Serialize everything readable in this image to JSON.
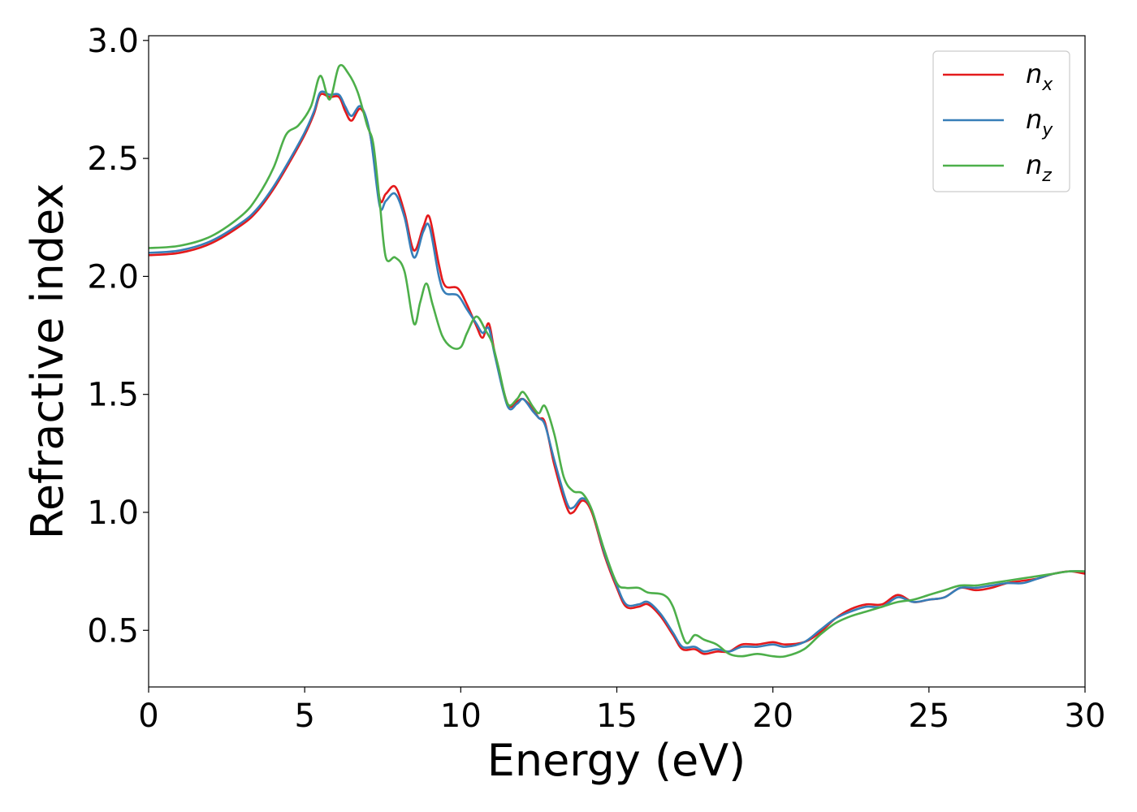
{
  "chart_data": {
    "type": "line",
    "xlabel": "Energy (eV)",
    "ylabel": "Refractive index",
    "xlim": [
      0,
      30
    ],
    "ylim": [
      0.26,
      3.02
    ],
    "xticks": [
      0,
      5,
      10,
      15,
      20,
      25,
      30
    ],
    "xtick_labels": [
      "0",
      "5",
      "10",
      "15",
      "20",
      "25",
      "30"
    ],
    "yticks": [
      0.5,
      1.0,
      1.5,
      2.0,
      2.5,
      3.0
    ],
    "ytick_labels": [
      "0.5",
      "1.0",
      "1.5",
      "2.0",
      "2.5",
      "3.0"
    ],
    "grid": false,
    "legend_position": "top-right",
    "series": [
      {
        "name": "n",
        "sub": "x",
        "color": "#e41a1c",
        "points": [
          [
            0,
            2.09
          ],
          [
            1,
            2.1
          ],
          [
            2,
            2.14
          ],
          [
            3,
            2.22
          ],
          [
            3.5,
            2.28
          ],
          [
            4,
            2.37
          ],
          [
            4.5,
            2.48
          ],
          [
            5,
            2.6
          ],
          [
            5.3,
            2.69
          ],
          [
            5.5,
            2.77
          ],
          [
            5.8,
            2.76
          ],
          [
            6.1,
            2.76
          ],
          [
            6.3,
            2.7
          ],
          [
            6.5,
            2.66
          ],
          [
            6.8,
            2.71
          ],
          [
            7.1,
            2.6
          ],
          [
            7.4,
            2.33
          ],
          [
            7.6,
            2.35
          ],
          [
            7.9,
            2.38
          ],
          [
            8.2,
            2.27
          ],
          [
            8.5,
            2.11
          ],
          [
            8.8,
            2.21
          ],
          [
            9.0,
            2.25
          ],
          [
            9.3,
            2.05
          ],
          [
            9.5,
            1.96
          ],
          [
            9.9,
            1.95
          ],
          [
            10.2,
            1.88
          ],
          [
            10.5,
            1.79
          ],
          [
            10.7,
            1.74
          ],
          [
            10.9,
            1.8
          ],
          [
            11.1,
            1.67
          ],
          [
            11.5,
            1.46
          ],
          [
            11.8,
            1.47
          ],
          [
            12.0,
            1.48
          ],
          [
            12.3,
            1.44
          ],
          [
            12.5,
            1.4
          ],
          [
            12.7,
            1.38
          ],
          [
            13.0,
            1.2
          ],
          [
            13.4,
            1.02
          ],
          [
            13.6,
            1.0
          ],
          [
            13.9,
            1.05
          ],
          [
            14.2,
            1.0
          ],
          [
            14.6,
            0.82
          ],
          [
            15.0,
            0.68
          ],
          [
            15.3,
            0.6
          ],
          [
            15.7,
            0.6
          ],
          [
            16.0,
            0.61
          ],
          [
            16.4,
            0.56
          ],
          [
            16.8,
            0.48
          ],
          [
            17.1,
            0.42
          ],
          [
            17.5,
            0.42
          ],
          [
            17.8,
            0.4
          ],
          [
            18.2,
            0.41
          ],
          [
            18.6,
            0.41
          ],
          [
            19.0,
            0.44
          ],
          [
            19.5,
            0.44
          ],
          [
            20.0,
            0.45
          ],
          [
            20.4,
            0.44
          ],
          [
            21.0,
            0.45
          ],
          [
            21.5,
            0.49
          ],
          [
            22.0,
            0.55
          ],
          [
            22.5,
            0.59
          ],
          [
            23.0,
            0.61
          ],
          [
            23.5,
            0.61
          ],
          [
            24.0,
            0.65
          ],
          [
            24.5,
            0.62
          ],
          [
            25.0,
            0.63
          ],
          [
            25.5,
            0.64
          ],
          [
            26.0,
            0.68
          ],
          [
            26.5,
            0.67
          ],
          [
            27.0,
            0.68
          ],
          [
            27.5,
            0.7
          ],
          [
            28.0,
            0.71
          ],
          [
            28.5,
            0.72
          ],
          [
            29.0,
            0.74
          ],
          [
            29.5,
            0.75
          ],
          [
            30.0,
            0.74
          ]
        ]
      },
      {
        "name": "n",
        "sub": "y",
        "color": "#377eb8",
        "points": [
          [
            0,
            2.1
          ],
          [
            1,
            2.11
          ],
          [
            2,
            2.15
          ],
          [
            3,
            2.23
          ],
          [
            3.5,
            2.29
          ],
          [
            4,
            2.38
          ],
          [
            4.5,
            2.49
          ],
          [
            5,
            2.61
          ],
          [
            5.3,
            2.7
          ],
          [
            5.5,
            2.78
          ],
          [
            5.8,
            2.77
          ],
          [
            6.1,
            2.77
          ],
          [
            6.3,
            2.72
          ],
          [
            6.5,
            2.68
          ],
          [
            6.8,
            2.72
          ],
          [
            7.1,
            2.6
          ],
          [
            7.4,
            2.3
          ],
          [
            7.6,
            2.32
          ],
          [
            7.9,
            2.35
          ],
          [
            8.2,
            2.25
          ],
          [
            8.5,
            2.08
          ],
          [
            8.8,
            2.19
          ],
          [
            9.0,
            2.21
          ],
          [
            9.3,
            2.0
          ],
          [
            9.5,
            1.93
          ],
          [
            9.9,
            1.92
          ],
          [
            10.2,
            1.86
          ],
          [
            10.5,
            1.8
          ],
          [
            10.7,
            1.76
          ],
          [
            10.9,
            1.78
          ],
          [
            11.1,
            1.66
          ],
          [
            11.5,
            1.45
          ],
          [
            11.8,
            1.46
          ],
          [
            12.0,
            1.48
          ],
          [
            12.3,
            1.43
          ],
          [
            12.5,
            1.4
          ],
          [
            12.7,
            1.37
          ],
          [
            13.0,
            1.22
          ],
          [
            13.4,
            1.04
          ],
          [
            13.6,
            1.02
          ],
          [
            13.9,
            1.06
          ],
          [
            14.2,
            1.01
          ],
          [
            14.6,
            0.83
          ],
          [
            15.0,
            0.69
          ],
          [
            15.3,
            0.61
          ],
          [
            15.7,
            0.61
          ],
          [
            16.0,
            0.62
          ],
          [
            16.4,
            0.57
          ],
          [
            16.8,
            0.49
          ],
          [
            17.1,
            0.43
          ],
          [
            17.5,
            0.43
          ],
          [
            17.8,
            0.41
          ],
          [
            18.2,
            0.42
          ],
          [
            18.6,
            0.41
          ],
          [
            19.0,
            0.43
          ],
          [
            19.5,
            0.43
          ],
          [
            20.0,
            0.44
          ],
          [
            20.4,
            0.43
          ],
          [
            21.0,
            0.45
          ],
          [
            21.5,
            0.5
          ],
          [
            22.0,
            0.55
          ],
          [
            22.5,
            0.58
          ],
          [
            23.0,
            0.6
          ],
          [
            23.5,
            0.6
          ],
          [
            24.0,
            0.64
          ],
          [
            24.5,
            0.62
          ],
          [
            25.0,
            0.63
          ],
          [
            25.5,
            0.64
          ],
          [
            26.0,
            0.68
          ],
          [
            26.5,
            0.68
          ],
          [
            27.0,
            0.69
          ],
          [
            27.5,
            0.7
          ],
          [
            28.0,
            0.7
          ],
          [
            28.5,
            0.72
          ],
          [
            29.0,
            0.74
          ],
          [
            29.5,
            0.75
          ],
          [
            30.0,
            0.75
          ]
        ]
      },
      {
        "name": "n",
        "sub": "z",
        "color": "#4daf4a",
        "points": [
          [
            0,
            2.12
          ],
          [
            1,
            2.13
          ],
          [
            2,
            2.17
          ],
          [
            3,
            2.26
          ],
          [
            3.5,
            2.34
          ],
          [
            4,
            2.46
          ],
          [
            4.4,
            2.6
          ],
          [
            4.8,
            2.64
          ],
          [
            5.2,
            2.72
          ],
          [
            5.5,
            2.85
          ],
          [
            5.8,
            2.75
          ],
          [
            6.1,
            2.89
          ],
          [
            6.4,
            2.86
          ],
          [
            6.7,
            2.78
          ],
          [
            7.0,
            2.64
          ],
          [
            7.2,
            2.56
          ],
          [
            7.4,
            2.32
          ],
          [
            7.6,
            2.08
          ],
          [
            7.9,
            2.08
          ],
          [
            8.2,
            2.02
          ],
          [
            8.5,
            1.8
          ],
          [
            8.7,
            1.89
          ],
          [
            8.9,
            1.97
          ],
          [
            9.1,
            1.88
          ],
          [
            9.4,
            1.75
          ],
          [
            9.7,
            1.7
          ],
          [
            10.0,
            1.7
          ],
          [
            10.2,
            1.76
          ],
          [
            10.5,
            1.83
          ],
          [
            10.8,
            1.77
          ],
          [
            11.0,
            1.72
          ],
          [
            11.2,
            1.62
          ],
          [
            11.5,
            1.46
          ],
          [
            11.8,
            1.48
          ],
          [
            12.0,
            1.51
          ],
          [
            12.3,
            1.45
          ],
          [
            12.5,
            1.42
          ],
          [
            12.7,
            1.45
          ],
          [
            13.0,
            1.33
          ],
          [
            13.3,
            1.15
          ],
          [
            13.6,
            1.09
          ],
          [
            13.9,
            1.08
          ],
          [
            14.2,
            1.01
          ],
          [
            14.6,
            0.84
          ],
          [
            15.0,
            0.7
          ],
          [
            15.3,
            0.68
          ],
          [
            15.7,
            0.68
          ],
          [
            16.0,
            0.66
          ],
          [
            16.5,
            0.65
          ],
          [
            16.8,
            0.6
          ],
          [
            17.2,
            0.45
          ],
          [
            17.5,
            0.48
          ],
          [
            17.8,
            0.46
          ],
          [
            18.2,
            0.44
          ],
          [
            18.6,
            0.4
          ],
          [
            19.0,
            0.39
          ],
          [
            19.5,
            0.4
          ],
          [
            20.0,
            0.39
          ],
          [
            20.4,
            0.39
          ],
          [
            21.0,
            0.42
          ],
          [
            21.5,
            0.48
          ],
          [
            22.0,
            0.53
          ],
          [
            22.5,
            0.56
          ],
          [
            23.0,
            0.58
          ],
          [
            23.5,
            0.6
          ],
          [
            24.0,
            0.62
          ],
          [
            24.5,
            0.63
          ],
          [
            25.0,
            0.65
          ],
          [
            25.5,
            0.67
          ],
          [
            26.0,
            0.69
          ],
          [
            26.5,
            0.69
          ],
          [
            27.0,
            0.7
          ],
          [
            27.5,
            0.71
          ],
          [
            28.0,
            0.72
          ],
          [
            28.5,
            0.73
          ],
          [
            29.0,
            0.74
          ],
          [
            29.5,
            0.75
          ],
          [
            30.0,
            0.75
          ]
        ]
      }
    ]
  }
}
